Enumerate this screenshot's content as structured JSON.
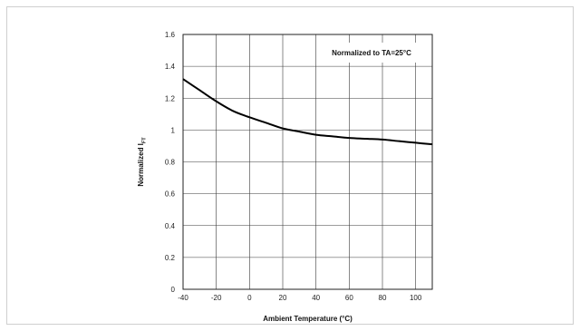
{
  "chart_data": {
    "type": "line",
    "title": "",
    "xlabel": "Ambient Temperature (°C)",
    "ylabel_main": "Normalized I",
    "ylabel_sub": "FT",
    "xlim": [
      -40,
      110
    ],
    "ylim": [
      0,
      1.6
    ],
    "x_ticks": [
      -40,
      -20,
      0,
      20,
      40,
      60,
      80,
      100
    ],
    "x_tick_labels": [
      "-40",
      "-20",
      "0",
      "20",
      "40",
      "60",
      "80",
      "100"
    ],
    "y_ticks": [
      0,
      0.2,
      0.4,
      0.6,
      0.8,
      1,
      1.2,
      1.4,
      1.6
    ],
    "y_tick_labels": [
      "0",
      "0.2",
      "0.4",
      "0.6",
      "0.8",
      "1",
      "1.2",
      "1.4",
      "1.6"
    ],
    "grid": true,
    "annotation": "Normalized to TA=25°C",
    "series": [
      {
        "x": [
          -40,
          -30,
          -20,
          -10,
          0,
          10,
          20,
          30,
          40,
          50,
          60,
          70,
          80,
          90,
          100,
          110
        ],
        "y": [
          1.32,
          1.25,
          1.18,
          1.12,
          1.08,
          1.045,
          1.01,
          0.99,
          0.97,
          0.96,
          0.95,
          0.945,
          0.94,
          0.93,
          0.92,
          0.91
        ]
      }
    ]
  }
}
